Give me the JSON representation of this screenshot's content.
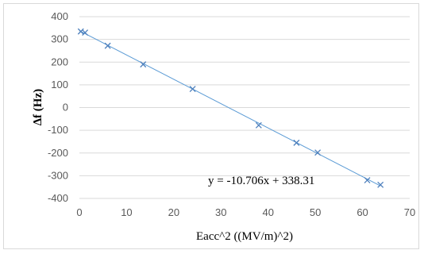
{
  "chart_data": {
    "type": "scatter",
    "xlabel": "Eacc^2 ((MV/m)^2)",
    "ylabel": "∆f (Hz)",
    "xlim": [
      0,
      70
    ],
    "ylim": [
      -400,
      400
    ],
    "x_ticks": [
      0,
      10,
      20,
      30,
      40,
      50,
      60,
      70
    ],
    "y_ticks": [
      400,
      300,
      200,
      100,
      0,
      -100,
      -200,
      -300,
      -400
    ],
    "grid": "horizontal",
    "points": [
      {
        "x": 0.3,
        "y": 335
      },
      {
        "x": 1.2,
        "y": 330
      },
      {
        "x": 6.0,
        "y": 272
      },
      {
        "x": 13.5,
        "y": 190
      },
      {
        "x": 24.0,
        "y": 82
      },
      {
        "x": 38.0,
        "y": -78
      },
      {
        "x": 46.0,
        "y": -155
      },
      {
        "x": 50.5,
        "y": -198
      },
      {
        "x": 61.0,
        "y": -320
      },
      {
        "x": 63.8,
        "y": -340
      }
    ],
    "trendline": {
      "slope": -10.706,
      "intercept": 338.31,
      "x_range": [
        0,
        63.8
      ],
      "equation": "y = -10.706x + 338.31"
    },
    "marker_color": "#4f81bd",
    "line_color": "#5b9bd5",
    "grid_color": "#d9d9d9"
  }
}
